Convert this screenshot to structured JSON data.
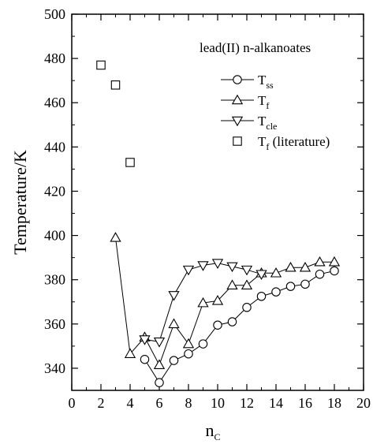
{
  "chart_data": {
    "type": "line",
    "title": "",
    "xlabel": "n",
    "xlabel_sub": "C",
    "ylabel": "Temperature/K",
    "xlim": [
      0,
      20
    ],
    "ylim": [
      330,
      500
    ],
    "xticks": [
      0,
      2,
      4,
      6,
      8,
      10,
      12,
      14,
      16,
      18,
      20
    ],
    "yticks": [
      340,
      360,
      380,
      400,
      420,
      440,
      460,
      480,
      500
    ],
    "grid": false,
    "legend_title": "lead(II) n-alkanoates",
    "legend_position": "top-right",
    "series": [
      {
        "name": "T",
        "name_sub": "ss",
        "marker": "circle",
        "line": true,
        "x": [
          5,
          6,
          7,
          8,
          9,
          10,
          11,
          12,
          13,
          14,
          15,
          16,
          17,
          18
        ],
        "y": [
          344,
          333.5,
          343.5,
          346.5,
          351,
          359.5,
          361,
          367.5,
          372.5,
          374.5,
          377,
          378,
          382.5,
          384
        ]
      },
      {
        "name": "T",
        "name_sub": "f",
        "marker": "triangle-up",
        "line": true,
        "x": [
          3,
          4,
          5,
          6,
          7,
          8,
          9,
          10,
          11,
          12,
          13,
          14,
          15,
          16,
          17,
          18
        ],
        "y": [
          399,
          346.5,
          354,
          341.5,
          360,
          351,
          369.5,
          370.5,
          377.5,
          377.5,
          383,
          383,
          385.5,
          385.5,
          388,
          388
        ]
      },
      {
        "name": "T",
        "name_sub": "cle",
        "marker": "triangle-down",
        "line": true,
        "x": [
          5,
          6,
          7,
          8,
          9,
          10,
          11,
          12,
          13
        ],
        "y": [
          353,
          352,
          373,
          384.5,
          386.5,
          387.5,
          386,
          384.5,
          382.5
        ]
      },
      {
        "name": "T",
        "name_sub": "f",
        "name_suffix": " (literature)",
        "marker": "square",
        "line": false,
        "x": [
          2,
          3,
          4
        ],
        "y": [
          477,
          468,
          433
        ]
      }
    ]
  }
}
